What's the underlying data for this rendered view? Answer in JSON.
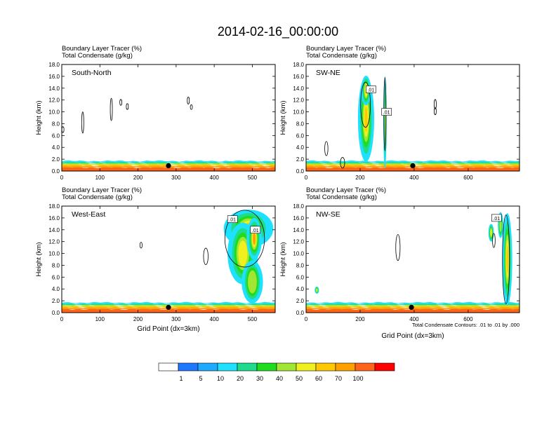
{
  "title": "2014-02-16_00:00:00",
  "chart_data": [
    {
      "type": "heatmap",
      "panel": "South-North",
      "fill_label": "Boundary Layer Tracer   (%)",
      "contour_label": "Total Condensate   (g/kg)",
      "xlim": [
        0,
        560
      ],
      "ylim": [
        0,
        18
      ],
      "xticks": [
        0,
        100,
        200,
        300,
        400,
        500
      ],
      "yticks": [
        "0.0",
        "2.0",
        "4.0",
        "6.0",
        "8.0",
        "10.0",
        "12.0",
        "14.0",
        "16.0",
        "18.0"
      ],
      "xlabel": "",
      "ylabel": "Height (km)",
      "marker_x": 280,
      "plumes": [],
      "contours": [
        [
          3,
          7.0,
          0.6,
          0.5
        ],
        [
          55,
          8.2,
          0.7,
          1.8
        ],
        [
          130,
          10.4,
          0.9,
          1.9
        ],
        [
          155,
          11.6,
          0.6,
          0.5
        ],
        [
          172,
          10.9,
          0.6,
          0.5
        ],
        [
          332,
          11.9,
          0.6,
          0.6
        ],
        [
          340,
          10.8,
          0.5,
          0.4
        ]
      ],
      "contour_tags": []
    },
    {
      "type": "heatmap",
      "panel": "SW-NE",
      "fill_label": "Boundary Layer Tracer   (%)",
      "contour_label": "Total Condensate   (g/kg)",
      "xlim": [
        0,
        790
      ],
      "ylim": [
        0,
        18
      ],
      "xticks": [
        0,
        200,
        400,
        600
      ],
      "yticks": [
        "0.0",
        "2.0",
        "4.0",
        "6.0",
        "8.0",
        "10.0",
        "12.0",
        "14.0",
        "16.0",
        "18.0"
      ],
      "xlabel": "",
      "ylabel": "Height (km)",
      "marker_x": 395,
      "plumes": [
        [
          222,
          8.8,
          30,
          7.2,
          60
        ],
        [
          222,
          13.6,
          18,
          2.5,
          50
        ],
        [
          292,
          8.2,
          6,
          7.8,
          50
        ],
        [
          292,
          8.2,
          2,
          6.5,
          70
        ]
      ],
      "contours": [
        [
          220,
          11.2,
          18,
          3.8
        ],
        [
          292,
          9.6,
          4,
          6.2
        ],
        [
          75,
          3.8,
          6,
          1.2
        ],
        [
          135,
          1.4,
          8,
          0.9
        ],
        [
          478,
          11.3,
          4,
          0.8
        ],
        [
          478,
          10.1,
          3,
          0.6
        ]
      ],
      "contour_tags": [
        [
          240,
          13.8,
          ".01"
        ],
        [
          298,
          10.0,
          ".01"
        ]
      ]
    },
    {
      "type": "heatmap",
      "panel": "West-East",
      "fill_label": "Boundary Layer Tracer   (%)",
      "contour_label": "Total Condensate   (g/kg)",
      "xlim": [
        0,
        560
      ],
      "ylim": [
        0,
        18
      ],
      "xticks": [
        0,
        100,
        200,
        300,
        400,
        500
      ],
      "yticks": [
        "0.0",
        "2.0",
        "4.0",
        "6.0",
        "8.0",
        "10.0",
        "12.0",
        "14.0",
        "16.0",
        "18.0"
      ],
      "xlabel": "Grid Point (dx=3km)",
      "ylabel": "Height (km)",
      "marker_x": 280,
      "plumes": [
        [
          490,
          14.2,
          65,
          3.2,
          60
        ],
        [
          475,
          10.0,
          40,
          5.2,
          50
        ],
        [
          500,
          5.2,
          28,
          3.6,
          40
        ],
        [
          505,
          12.5,
          20,
          3.5,
          70
        ]
      ],
      "contours": [
        [
          480,
          12.5,
          52,
          4.8
        ],
        [
          378,
          9.5,
          6,
          1.4
        ],
        [
          208,
          11.4,
          3,
          0.5
        ]
      ],
      "contour_tags": [
        [
          448,
          15.8,
          ".01"
        ],
        [
          508,
          14.0,
          ".01"
        ]
      ]
    },
    {
      "type": "heatmap",
      "panel": "NW-SE",
      "fill_label": "Boundary Layer Tracer   (%)",
      "contour_label": "Total Condensate   (g/kg)",
      "xlim": [
        0,
        790
      ],
      "ylim": [
        0,
        18
      ],
      "xticks": [
        0,
        200,
        400,
        600
      ],
      "yticks": [
        "0.0",
        "2.0",
        "4.0",
        "6.0",
        "8.0",
        "10.0",
        "12.0",
        "14.0",
        "16.0",
        "18.0"
      ],
      "xlabel": "Grid Point (dx=3km)",
      "ylabel": "Height (km)",
      "marker_x": 390,
      "plumes": [
        [
          745,
          9.0,
          18,
          7.8,
          60
        ],
        [
          685,
          13.5,
          10,
          1.5,
          50
        ],
        [
          720,
          14.8,
          10,
          2.2,
          40
        ],
        [
          40,
          3.8,
          8,
          0.6,
          50
        ]
      ],
      "contours": [
        [
          740,
          9.0,
          13,
          7.5
        ],
        [
          340,
          11.0,
          8,
          2.2
        ],
        [
          695,
          12.2,
          5,
          1.2
        ]
      ],
      "contour_tags": [
        [
          705,
          16.0,
          ".01"
        ]
      ],
      "footnote": "Total Condensate Contours: .01 to .01 by .000"
    }
  ],
  "colorbar": {
    "colors": [
      "#ffffff",
      "#1e78ff",
      "#1eaaff",
      "#1ee1ff",
      "#1edc8c",
      "#1edc1e",
      "#a0e632",
      "#f0f01e",
      "#ffc800",
      "#ffa000",
      "#ff6419",
      "#ff0000"
    ],
    "labels": [
      "1",
      "5",
      "10",
      "20",
      "30",
      "40",
      "50",
      "60",
      "70",
      "100"
    ]
  }
}
